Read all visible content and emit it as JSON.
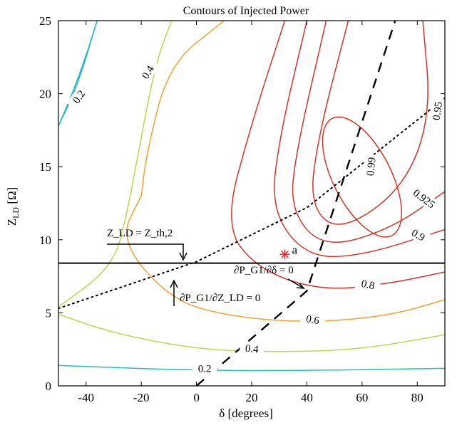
{
  "chart_data": {
    "type": "contour",
    "title": "Contours of Injected Power",
    "xlabel": "δ [degrees]",
    "ylabel": "Z_LD [Ω]",
    "xlim": [
      -50,
      90
    ],
    "ylim": [
      0,
      25
    ],
    "xticks": [
      -40,
      -20,
      0,
      20,
      40,
      60,
      80
    ],
    "yticks": [
      0,
      5,
      10,
      15,
      20,
      25
    ],
    "colors": {
      "c0_2": "#21c3c0",
      "c0_4": "#b9d84a",
      "c0_6": "#f2a22d",
      "c0_8": "#d2352a",
      "top_left_blue": "#2a9bd8",
      "marker": "#ff2a2a"
    },
    "contours": [
      {
        "label": "0.2",
        "color": "#21c3c0",
        "segments": [
          [
            [
              -50,
              17.8
            ],
            [
              -45,
              20.0
            ],
            [
              -40,
              22.6
            ],
            [
              -36,
              25
            ]
          ],
          [
            [
              -50,
              1.4
            ],
            [
              0,
              1.05
            ],
            [
              40,
              1.05
            ],
            [
              90,
              1.2
            ]
          ]
        ]
      },
      {
        "label": "0.4",
        "color": "#b9d84a",
        "segments": [
          [
            [
              -50,
              5.4
            ],
            [
              -30,
              8.2
            ],
            [
              -25,
              12
            ],
            [
              -22,
              15
            ],
            [
              -15,
              22
            ],
            [
              -9,
              25
            ]
          ],
          [
            [
              -50,
              4.9
            ],
            [
              -30,
              3.6
            ],
            [
              0,
              2.5
            ],
            [
              30,
              2.3
            ],
            [
              60,
              2.5
            ],
            [
              90,
              3.5
            ]
          ]
        ]
      },
      {
        "label": "0.6",
        "color": "#f2a22d",
        "segments": [
          [
            [
              -20,
              13
            ],
            [
              -18,
              16
            ],
            [
              -10,
              22
            ],
            [
              10,
              25
            ]
          ],
          [
            [
              -20,
              13
            ],
            [
              -28,
              10
            ],
            [
              -10,
              6
            ],
            [
              10,
              4.8
            ],
            [
              40,
              4.3
            ],
            [
              70,
              4.8
            ],
            [
              90,
              5.9
            ]
          ]
        ]
      },
      {
        "label": "0.8",
        "color": "#d2352a",
        "segments": [
          [
            [
              32,
              25
            ],
            [
              20,
              18
            ],
            [
              10,
              11
            ],
            [
              22,
              8
            ],
            [
              45,
              6.5
            ],
            [
              70,
              7.0
            ],
            [
              90,
              7.8
            ]
          ]
        ]
      },
      {
        "label": "0.9",
        "color": "#d2352a",
        "segments": [
          [
            [
              40,
              25
            ],
            [
              30,
              17
            ],
            [
              27,
              12
            ],
            [
              40,
              8.8
            ],
            [
              60,
              8.9
            ],
            [
              90,
              10.7
            ]
          ]
        ]
      },
      {
        "label": "0.925",
        "color": "#d2352a",
        "segments": [
          [
            [
              47,
              25
            ],
            [
              36,
              16
            ],
            [
              34,
              12
            ],
            [
              46,
              9.4
            ],
            [
              70,
              10.7
            ],
            [
              90,
              13.3
            ]
          ]
        ]
      },
      {
        "label": "0.95",
        "color": "#d2352a",
        "segments": [
          [
            [
              55,
              25
            ],
            [
              44,
              17
            ],
            [
              41,
              12.3
            ],
            [
              52,
              10.5
            ],
            [
              75,
              13.5
            ],
            [
              85,
              18.5
            ],
            [
              82,
              25
            ]
          ]
        ]
      },
      {
        "label": "0.99",
        "color": "#d2352a",
        "ellipse": {
          "cx": 60,
          "cy": 14.3,
          "rx": 10.5,
          "ry": 4.5
        }
      }
    ],
    "lines": {
      "horizontal_y": 8.4,
      "horizontal_label": "Z_LD = Z_th,2",
      "dashed_label": "∂P_G1/∂δ = 0",
      "dotted_label": "∂P_G1/∂Z_LD = 0",
      "dashed_points": [
        [
          0,
          0
        ],
        [
          40,
          6.5
        ],
        [
          72,
          25
        ]
      ],
      "dotted_points": [
        [
          -50,
          5.3
        ],
        [
          0,
          8.5
        ],
        [
          40,
          12.2
        ],
        [
          90,
          19.7
        ]
      ]
    },
    "marker": {
      "x": 32,
      "y": 9.0,
      "label": "a"
    }
  }
}
